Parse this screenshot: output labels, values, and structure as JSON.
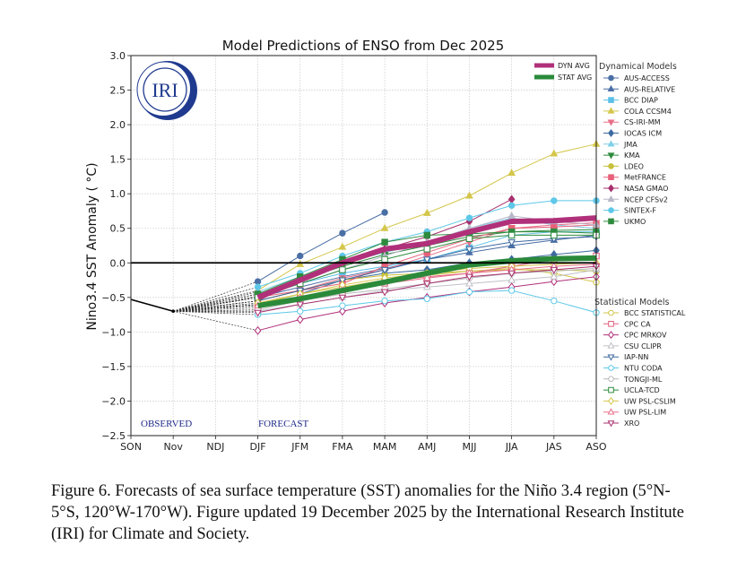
{
  "chart_data": {
    "type": "line",
    "title": "Model Predictions of ENSO from Dec 2025",
    "xlabel": "",
    "ylabel": "Nino3.4 SST Anomaly ( °C)",
    "categories": [
      "SON",
      "Nov",
      "NDJ",
      "DJF",
      "JFM",
      "FMA",
      "MAM",
      "AMJ",
      "MJJ",
      "JJA",
      "JAS",
      "ASO"
    ],
    "ylim": [
      -2.5,
      3.0
    ],
    "yticks": [
      "3.0",
      "2.5",
      "2.0",
      "1.5",
      "1.0",
      "0.5",
      "0.0",
      "−0.5",
      "−1.0",
      "−1.5",
      "−2.0",
      "−2.5"
    ],
    "ytick_values": [
      3.0,
      2.5,
      2.0,
      1.5,
      1.0,
      0.5,
      0.0,
      -0.5,
      -1.0,
      -1.5,
      -2.0,
      -2.5
    ],
    "grid": true,
    "annotations": {
      "observed": "OBSERVED",
      "forecast": "FORECAST"
    },
    "logo_text": "IRI",
    "observed": {
      "name": "Observed",
      "x": [
        "SON",
        "Nov"
      ],
      "values": [
        -0.53,
        -0.7
      ],
      "color": "#000000"
    },
    "averages": [
      {
        "name": "DYN AVG",
        "color": "#b0307a",
        "values": [
          null,
          null,
          null,
          -0.5,
          -0.25,
          0.0,
          0.2,
          0.28,
          0.45,
          0.6,
          0.61,
          0.65
        ]
      },
      {
        "name": "STAT AVG",
        "color": "#2a8a3a",
        "values": [
          null,
          null,
          null,
          -0.62,
          -0.52,
          -0.4,
          -0.28,
          -0.15,
          -0.03,
          0.03,
          0.06,
          0.07
        ]
      }
    ],
    "legend_dynamical_title": "Dynamical Models",
    "legend_statistical_title": "Statistical Models",
    "legend_placement": "right",
    "series": [
      {
        "name": "AUS-ACCESS",
        "group": "dynamical",
        "color": "#4a6fa5",
        "marker": "circle",
        "filled": true,
        "values": [
          null,
          null,
          null,
          -0.27,
          0.1,
          0.43,
          0.73,
          null,
          null,
          null,
          null,
          null
        ]
      },
      {
        "name": "AUS-RELATIVE",
        "group": "dynamical",
        "color": "#4a6fa5",
        "marker": "triangle-up",
        "filled": true,
        "values": [
          null,
          null,
          null,
          -0.5,
          -0.35,
          -0.2,
          -0.08,
          0.05,
          0.15,
          0.25,
          0.33,
          0.4
        ]
      },
      {
        "name": "BCC DIAP",
        "group": "dynamical",
        "color": "#5bc0e8",
        "marker": "square",
        "filled": true,
        "values": [
          null,
          null,
          null,
          -0.45,
          -0.3,
          -0.15,
          -0.05,
          0.05,
          0.22,
          0.4,
          0.45,
          0.45
        ]
      },
      {
        "name": "COLA CCSM4",
        "group": "dynamical",
        "color": "#d4c64a",
        "marker": "triangle-up",
        "filled": true,
        "values": [
          null,
          null,
          null,
          -0.4,
          -0.02,
          0.23,
          0.5,
          0.72,
          0.97,
          1.3,
          1.58,
          1.72
        ]
      },
      {
        "name": "CS-IRI-MM",
        "group": "dynamical",
        "color": "#e8708a",
        "marker": "triangle-down",
        "filled": true,
        "values": [
          null,
          null,
          null,
          -0.55,
          -0.4,
          -0.22,
          -0.1,
          0.1,
          0.3,
          0.5,
          0.55,
          0.58
        ]
      },
      {
        "name": "IOCAS ICM",
        "group": "dynamical",
        "color": "#3d6aa0",
        "marker": "diamond",
        "filled": true,
        "values": [
          null,
          null,
          null,
          -0.6,
          -0.45,
          -0.25,
          -0.15,
          -0.1,
          0.0,
          0.05,
          0.12,
          0.18
        ]
      },
      {
        "name": "JMA",
        "group": "dynamical",
        "color": "#7fd0e8",
        "marker": "triangle-up",
        "filled": true,
        "values": [
          null,
          null,
          null,
          -0.42,
          -0.2,
          0.0,
          0.15,
          0.3,
          0.5,
          0.65,
          0.55,
          0.5
        ]
      },
      {
        "name": "KMA",
        "group": "dynamical",
        "color": "#2e8b3e",
        "marker": "triangle-down",
        "filled": true,
        "values": [
          null,
          null,
          null,
          -0.48,
          -0.25,
          -0.05,
          0.12,
          0.25,
          0.38,
          0.45,
          0.47,
          0.48
        ]
      },
      {
        "name": "LDEO",
        "group": "dynamical",
        "color": "#c7c03a",
        "marker": "circle",
        "filled": true,
        "values": [
          null,
          null,
          null,
          -0.55,
          -0.4,
          -0.25,
          -0.18,
          -0.15,
          -0.12,
          -0.1,
          -0.1,
          -0.12
        ]
      },
      {
        "name": "MetFRANCE",
        "group": "dynamical",
        "color": "#e8607a",
        "marker": "square",
        "filled": true,
        "values": [
          null,
          null,
          null,
          -0.5,
          -0.4,
          -0.3,
          -0.05,
          0.15,
          0.35,
          0.5,
          0.52,
          0.55
        ]
      },
      {
        "name": "NASA GMAO",
        "group": "dynamical",
        "color": "#a8306e",
        "marker": "diamond",
        "filled": true,
        "values": [
          null,
          null,
          null,
          -0.55,
          -0.25,
          0.0,
          0.2,
          0.38,
          0.6,
          0.92,
          null,
          null
        ]
      },
      {
        "name": "NCEP CFSv2",
        "group": "dynamical",
        "color": "#b8b8c8",
        "marker": "triangle-up",
        "filled": true,
        "values": [
          null,
          null,
          null,
          -0.5,
          -0.3,
          -0.1,
          0.1,
          0.3,
          0.5,
          0.68,
          0.6,
          0.55
        ]
      },
      {
        "name": "SINTEX-F",
        "group": "dynamical",
        "color": "#5ec8e8",
        "marker": "circle",
        "filled": true,
        "values": [
          null,
          null,
          null,
          -0.35,
          -0.15,
          0.1,
          0.3,
          0.45,
          0.65,
          0.83,
          0.9,
          0.9
        ]
      },
      {
        "name": "UKMO",
        "group": "dynamical",
        "color": "#2e8b3e",
        "marker": "square",
        "filled": true,
        "values": [
          null,
          null,
          null,
          -0.45,
          -0.2,
          0.05,
          0.3,
          0.4,
          0.42,
          0.45,
          0.45,
          0.43
        ]
      },
      {
        "name": "BCC STATISTICAL",
        "group": "statistical",
        "color": "#d4c64a",
        "marker": "circle",
        "filled": false,
        "values": [
          null,
          null,
          null,
          -0.6,
          -0.45,
          -0.35,
          -0.25,
          -0.18,
          -0.12,
          -0.08,
          -0.15,
          -0.28
        ]
      },
      {
        "name": "CPC CA",
        "group": "statistical",
        "color": "#e06080",
        "marker": "square",
        "filled": false,
        "values": [
          null,
          null,
          null,
          -0.65,
          -0.5,
          -0.38,
          -0.28,
          -0.2,
          -0.15,
          -0.05,
          0.05,
          0.1
        ]
      },
      {
        "name": "CPC MRKOV",
        "group": "statistical",
        "color": "#b0307a",
        "marker": "diamond",
        "filled": false,
        "values": [
          null,
          null,
          null,
          -0.98,
          -0.82,
          -0.7,
          -0.58,
          -0.5,
          -0.42,
          -0.35,
          -0.27,
          -0.2
        ]
      },
      {
        "name": "CSU CLIPR",
        "group": "statistical",
        "color": "#c0c0c8",
        "marker": "triangle-up",
        "filled": false,
        "values": [
          null,
          null,
          null,
          -0.7,
          -0.6,
          -0.5,
          -0.4,
          -0.35,
          -0.3,
          -0.25,
          -0.2,
          -0.1
        ]
      },
      {
        "name": "IAP-NN",
        "group": "statistical",
        "color": "#3d6aa0",
        "marker": "triangle-down",
        "filled": false,
        "values": [
          null,
          null,
          null,
          -0.55,
          -0.4,
          -0.25,
          -0.1,
          0.05,
          0.2,
          0.3,
          0.35,
          0.38
        ]
      },
      {
        "name": "NTU CODA",
        "group": "statistical",
        "color": "#5ec8e8",
        "marker": "circle",
        "filled": false,
        "values": [
          null,
          null,
          null,
          -0.75,
          -0.7,
          -0.62,
          -0.55,
          -0.52,
          -0.42,
          -0.4,
          -0.55,
          -0.72
        ]
      },
      {
        "name": "TONGJI-ML",
        "group": "statistical",
        "color": "#b8b8b8",
        "marker": "circle",
        "filled": false,
        "values": [
          null,
          null,
          null,
          -0.68,
          -0.55,
          -0.45,
          -0.38,
          -0.3,
          -0.22,
          -0.15,
          -0.12,
          -0.08
        ]
      },
      {
        "name": "UCLA-TCD",
        "group": "statistical",
        "color": "#2e8b3e",
        "marker": "square",
        "filled": false,
        "values": [
          null,
          null,
          null,
          -0.5,
          -0.3,
          -0.1,
          0.05,
          0.2,
          0.35,
          0.4,
          0.4,
          0.4
        ]
      },
      {
        "name": "UW PSL-CSLIM",
        "group": "statistical",
        "color": "#d4c64a",
        "marker": "diamond",
        "filled": false,
        "values": [
          null,
          null,
          null,
          -0.58,
          -0.45,
          -0.32,
          -0.22,
          -0.15,
          -0.08,
          -0.05,
          -0.02,
          0.0
        ]
      },
      {
        "name": "UW PSL-LIM",
        "group": "statistical",
        "color": "#e8708a",
        "marker": "triangle-up",
        "filled": false,
        "values": [
          null,
          null,
          null,
          -0.62,
          -0.5,
          -0.4,
          -0.3,
          -0.22,
          -0.15,
          -0.1,
          -0.05,
          -0.02
        ]
      },
      {
        "name": "XRO",
        "group": "statistical",
        "color": "#a8306e",
        "marker": "triangle-down",
        "filled": false,
        "values": [
          null,
          null,
          null,
          -0.72,
          -0.6,
          -0.5,
          -0.42,
          -0.3,
          -0.2,
          -0.15,
          -0.1,
          -0.05
        ]
      }
    ]
  },
  "caption": "Figure 6. Forecasts of sea surface temperature (SST) anomalies for the Niño 3.4 region (5°N-5°S, 120°W-170°W). Figure updated 19 December 2025 by the International Research Institute (IRI) for Climate and Society."
}
